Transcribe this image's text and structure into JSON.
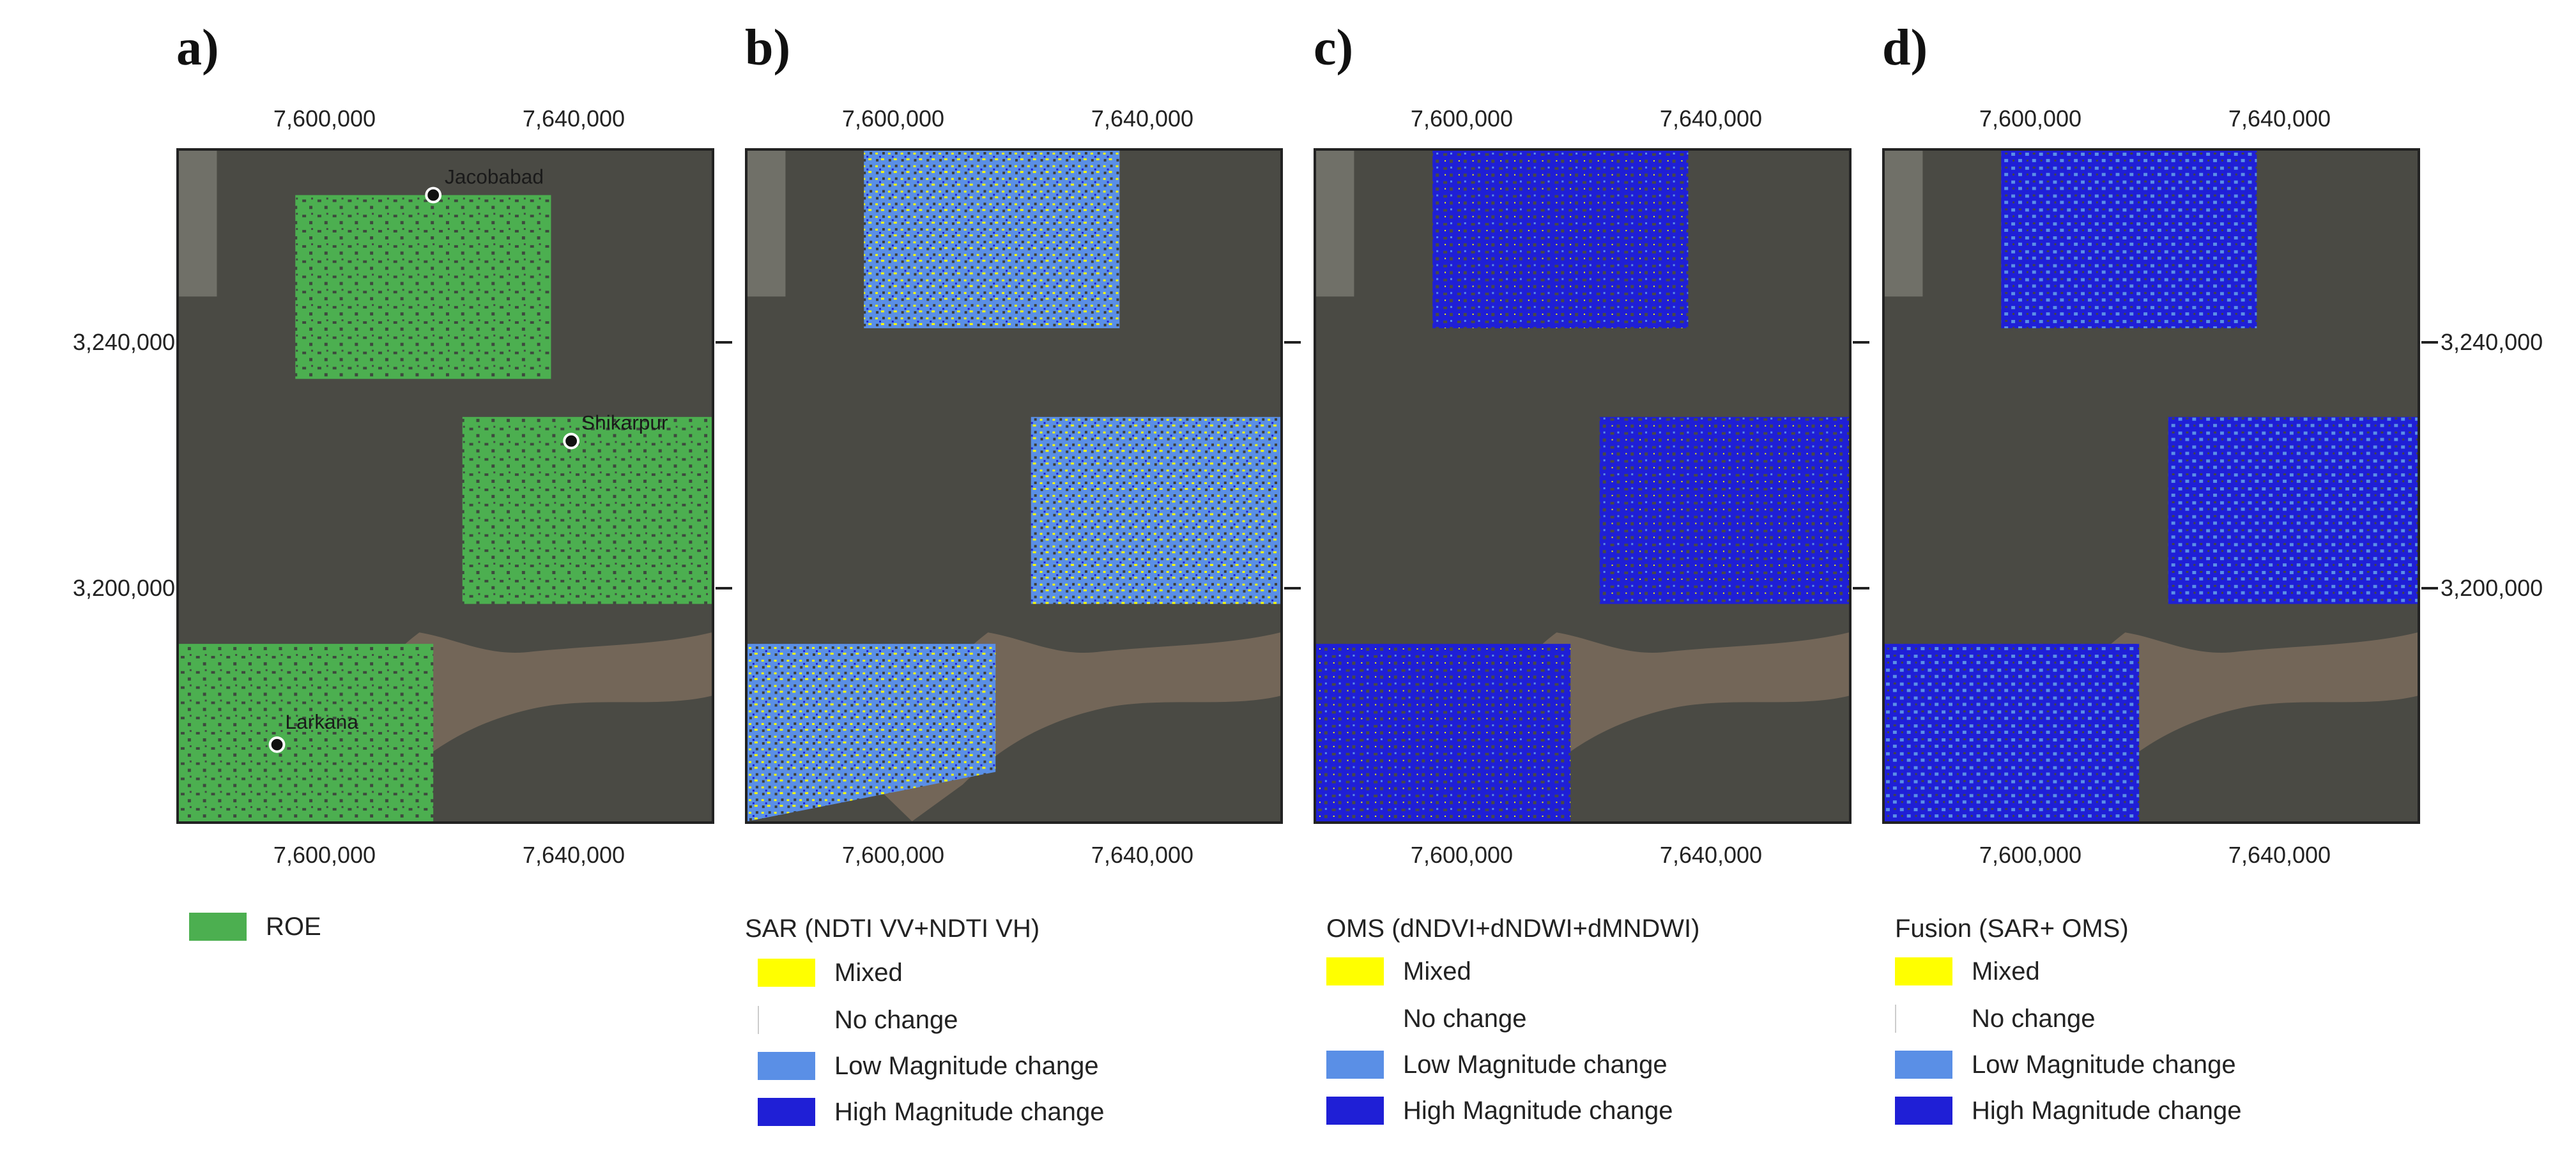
{
  "panels": [
    {
      "letter": "a)"
    },
    {
      "letter": "b)"
    },
    {
      "letter": "c)"
    },
    {
      "letter": "d)"
    }
  ],
  "axes": {
    "x_ticks": [
      "7,600,000",
      "7,640,000"
    ],
    "y_ticks": [
      "3,240,000",
      "3,200,000"
    ]
  },
  "cities": [
    "Jacobabad",
    "Shikarpur",
    "Larkana"
  ],
  "colors": {
    "roe": "#4caf50",
    "mixed": "#ffff00",
    "no_change": "#ffffff",
    "low_magnitude": "#5a8fe6",
    "high_magnitude": "#1f1fd6"
  },
  "legend_a": {
    "items": [
      {
        "label": "ROE",
        "color": "#4caf50"
      }
    ]
  },
  "legend_b": {
    "title": "SAR (NDTI VV+NDTI VH)",
    "items": [
      {
        "label": "Mixed",
        "color": "#ffff00"
      },
      {
        "label": "No change",
        "color": "#ffffff"
      },
      {
        "label": "Low Magnitude change",
        "color": "#5a8fe6"
      },
      {
        "label": "High Magnitude change",
        "color": "#1f1fd6"
      }
    ]
  },
  "legend_c": {
    "title": "OMS (dNDVI+dNDWI+dMNDWI)",
    "items": [
      {
        "label": "Mixed",
        "color": "#ffff00"
      },
      {
        "label": "No change",
        "color": "#ffffff"
      },
      {
        "label": "Low Magnitude change",
        "color": "#5a8fe6"
      },
      {
        "label": "High Magnitude change",
        "color": "#1f1fd6"
      }
    ]
  },
  "legend_d": {
    "title": "Fusion (SAR+ OMS)",
    "items": [
      {
        "label": "Mixed",
        "color": "#ffff00"
      },
      {
        "label": "No change",
        "color": "#ffffff"
      },
      {
        "label": "Low Magnitude change",
        "color": "#5a8fe6"
      },
      {
        "label": "High Magnitude change",
        "color": "#1f1fd6"
      }
    ]
  }
}
